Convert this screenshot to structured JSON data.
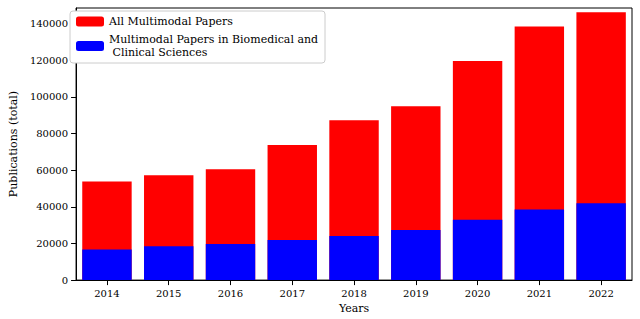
{
  "chart_data": {
    "type": "bar",
    "x_label": "Years",
    "y_label": "Publications (total)",
    "categories": [
      "2014",
      "2015",
      "2016",
      "2017",
      "2018",
      "2019",
      "2020",
      "2021",
      "2022"
    ],
    "series": [
      {
        "name": "All Multimodal Papers",
        "color": "#ff0000",
        "values": [
          53800,
          57200,
          60500,
          73800,
          87300,
          95000,
          119700,
          138500,
          146300
        ]
      },
      {
        "name": "Multimodal Papers in Biomedical and Clinical Sciences",
        "color": "#0000ff",
        "values": [
          16700,
          18500,
          19700,
          21900,
          24100,
          27400,
          33000,
          38600,
          42000
        ]
      }
    ],
    "ylim": [
      0,
      148600
    ],
    "yticks": [
      0,
      20000,
      40000,
      60000,
      80000,
      100000,
      120000,
      140000
    ],
    "grid": false,
    "legend": "upper left",
    "stacked": false
  }
}
